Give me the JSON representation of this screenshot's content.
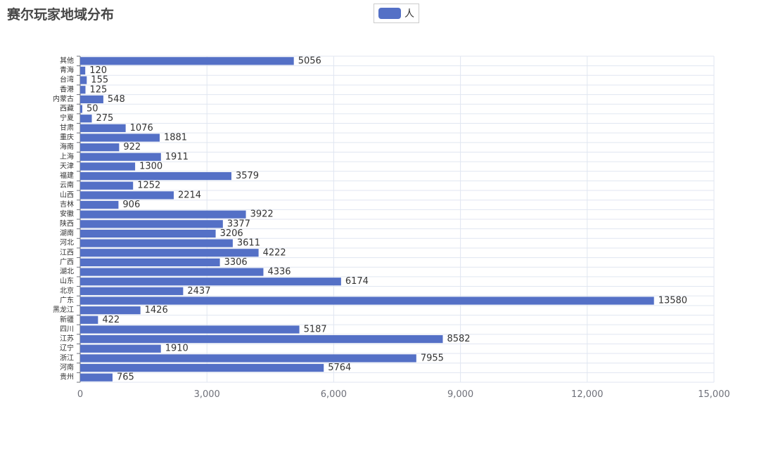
{
  "chart_data": {
    "type": "bar",
    "orientation": "horizontal",
    "title": "赛尔玩家地域分布",
    "legend": [
      "人"
    ],
    "legend_position": "top-center",
    "series_color": "#5470c6",
    "xlim": [
      0,
      15000
    ],
    "x_ticks": [
      0,
      3000,
      6000,
      9000,
      12000,
      15000
    ],
    "x_tick_labels": [
      "0",
      "3,000",
      "6,000",
      "9,000",
      "12,000",
      "15,000"
    ],
    "grid": true,
    "categories": [
      "其他",
      "青海",
      "台湾",
      "香港",
      "内蒙古",
      "西藏",
      "宁夏",
      "甘肃",
      "重庆",
      "海南",
      "上海",
      "天津",
      "福建",
      "云南",
      "山西",
      "吉林",
      "安徽",
      "陕西",
      "湖南",
      "河北",
      "江西",
      "广西",
      "湖北",
      "山东",
      "北京",
      "广东",
      "黑龙江",
      "新疆",
      "四川",
      "江苏",
      "辽宁",
      "浙江",
      "河南",
      "贵州"
    ],
    "values": [
      5056,
      120,
      155,
      125,
      548,
      50,
      275,
      1076,
      1881,
      922,
      1911,
      1300,
      3579,
      1252,
      2214,
      906,
      3922,
      3377,
      3206,
      3611,
      4222,
      3306,
      4336,
      6174,
      2437,
      13580,
      1426,
      422,
      5187,
      8582,
      1910,
      7955,
      5764,
      765
    ]
  }
}
